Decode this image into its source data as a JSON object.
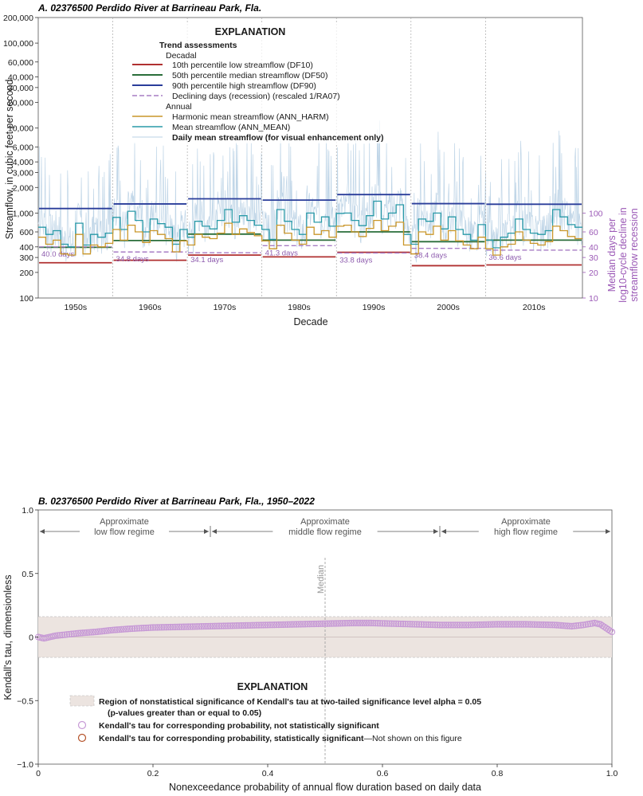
{
  "chart_data": [
    {
      "panel": "A.",
      "type": "line",
      "title": "02376500 Perdido River at Barrineau Park, Fla.",
      "xlabel": "Decade",
      "ylabel": "Streamflow, in cubic feet per second",
      "ylabel_right": [
        "Median days per",
        "log10-cycle decline in",
        "streamflow recession"
      ],
      "yscale": "log",
      "ylim": [
        100,
        200000
      ],
      "y_ticks": [
        {
          "v": 100,
          "label": "100"
        },
        {
          "v": 200,
          "label": "200"
        },
        {
          "v": 300,
          "label": "300"
        },
        {
          "v": 400,
          "label": "400"
        },
        {
          "v": 600,
          "label": "600"
        },
        {
          "v": 1000,
          "label": "1,000"
        },
        {
          "v": 2000,
          "label": "2,000"
        },
        {
          "v": 3000,
          "label": "3,000"
        },
        {
          "v": 4000,
          "label": "4,000"
        },
        {
          "v": 6000,
          "label": "6,000"
        },
        {
          "v": 10000,
          "label": "10,000"
        },
        {
          "v": 20000,
          "label": "20,000"
        },
        {
          "v": 30000,
          "label": "30,000"
        },
        {
          "v": 40000,
          "label": "40,000"
        },
        {
          "v": 60000,
          "label": "60,000"
        },
        {
          "v": 100000,
          "label": "100,000"
        },
        {
          "v": 200000,
          "label": "200,000"
        }
      ],
      "right_ticks": [
        {
          "v": 100,
          "label": "10"
        },
        {
          "v": 200,
          "label": "20"
        },
        {
          "v": 300,
          "label": "30"
        },
        {
          "v": 400,
          "label": "40"
        },
        {
          "v": 600,
          "label": "60"
        },
        {
          "v": 1000,
          "label": "100"
        }
      ],
      "xlim": [
        1950,
        2023
      ],
      "decades": [
        {
          "label": "1950s",
          "start": 1950,
          "end": 1960,
          "DF10": 260,
          "DF50": 395,
          "DF90": 1130,
          "recession_days": "40.0 days",
          "recession_value": 400
        },
        {
          "label": "1960s",
          "start": 1960,
          "end": 1970,
          "DF10": 278,
          "DF50": 475,
          "DF90": 1280,
          "recession_days": "34.8 days",
          "recession_value": 348
        },
        {
          "label": "1970s",
          "start": 1970,
          "end": 1980,
          "DF10": 320,
          "DF50": 565,
          "DF90": 1470,
          "recession_days": "34.1 days",
          "recession_value": 341
        },
        {
          "label": "1980s",
          "start": 1980,
          "end": 1990,
          "DF10": 305,
          "DF50": 480,
          "DF90": 1420,
          "recession_days": "41.3 days",
          "recession_value": 413
        },
        {
          "label": "1990s",
          "start": 1990,
          "end": 2000,
          "DF10": 345,
          "DF50": 600,
          "DF90": 1650,
          "recession_days": "33.8 days",
          "recession_value": 338
        },
        {
          "label": "2000s",
          "start": 2000,
          "end": 2010,
          "DF10": 240,
          "DF50": 460,
          "DF90": 1290,
          "recession_days": "38.4 days",
          "recession_value": 384
        },
        {
          "label": "2010s",
          "start": 2010,
          "end": 2023,
          "DF10": 245,
          "DF50": 480,
          "DF90": 1270,
          "recession_days": "36.6 days",
          "recession_value": 366
        }
      ],
      "annual_years": [
        1950,
        1951,
        1952,
        1953,
        1954,
        1955,
        1956,
        1957,
        1958,
        1959,
        1960,
        1961,
        1962,
        1963,
        1964,
        1965,
        1966,
        1967,
        1968,
        1969,
        1970,
        1971,
        1972,
        1973,
        1974,
        1975,
        1976,
        1977,
        1978,
        1979,
        1980,
        1981,
        1982,
        1983,
        1984,
        1985,
        1986,
        1987,
        1988,
        1989,
        1990,
        1991,
        1992,
        1993,
        1994,
        1995,
        1996,
        1997,
        1998,
        1999,
        2000,
        2001,
        2002,
        2003,
        2004,
        2005,
        2006,
        2007,
        2008,
        2009,
        2010,
        2011,
        2012,
        2013,
        2014,
        2015,
        2016,
        2017,
        2018,
        2019,
        2020,
        2021,
        2022
      ],
      "series": [
        {
          "name": "Mean streamflow (ANN_MEAN)",
          "color": "#2a9aa8",
          "values": [
            680,
            560,
            620,
            430,
            400,
            760,
            420,
            560,
            520,
            580,
            890,
            640,
            1050,
            820,
            600,
            850,
            750,
            680,
            430,
            640,
            520,
            800,
            700,
            650,
            820,
            1100,
            780,
            930,
            820,
            720,
            640,
            490,
            1100,
            800,
            640,
            560,
            1000,
            780,
            900,
            700,
            990,
            1000,
            820,
            710,
            930,
            1380,
            850,
            1000,
            1250,
            560,
            430,
            850,
            800,
            1000,
            650,
            900,
            640,
            560,
            480,
            730,
            480,
            390,
            520,
            580,
            850,
            640,
            580,
            560,
            620,
            1100,
            900,
            730,
            680
          ]
        },
        {
          "name": "Harmonic mean streamflow (ANN_HARM)",
          "color": "#c9962a",
          "values": [
            520,
            430,
            480,
            330,
            320,
            560,
            330,
            420,
            400,
            440,
            640,
            480,
            720,
            600,
            450,
            620,
            560,
            500,
            350,
            470,
            420,
            560,
            520,
            500,
            580,
            760,
            560,
            650,
            590,
            540,
            470,
            380,
            720,
            580,
            480,
            430,
            680,
            560,
            620,
            520,
            700,
            720,
            600,
            530,
            660,
            820,
            620,
            700,
            780,
            420,
            330,
            600,
            560,
            700,
            480,
            620,
            470,
            420,
            380,
            520,
            380,
            320,
            400,
            430,
            600,
            480,
            440,
            420,
            460,
            700,
            620,
            530,
            500
          ]
        }
      ],
      "daily_streamflow_note": "Daily mean streamflow (for visual enhancement only)",
      "legend": {
        "heading": "EXPLANATION",
        "group_title": "Trend assessments",
        "decadal_label": "Decadal",
        "annual_label": "Annual",
        "entries": [
          {
            "label": "10th percentile low streamflow (DF10)",
            "color": "#b03030",
            "style": "solid"
          },
          {
            "label": "50th percentile median streamflow (DF50)",
            "color": "#2a6e3a",
            "style": "solid"
          },
          {
            "label": "90th percentile high streamflow (DF90)",
            "color": "#2a3d9a",
            "style": "solid"
          },
          {
            "label": "Declining days (recession) (rescaled 1/RA07)",
            "color": "#a77dc4",
            "style": "dashed"
          },
          {
            "label": "Harmonic mean streamflow (ANN_HARM)",
            "color": "#c9962a",
            "style": "solid"
          },
          {
            "label": "Mean streamflow (ANN_MEAN)",
            "color": "#2a9aa8",
            "style": "solid"
          },
          {
            "label": "Daily mean streamflow (for visual enhancement only)",
            "color": "#b8d0e4",
            "style": "thin"
          }
        ]
      },
      "colors": {
        "daily": "#b8d0e4",
        "right_axis": "#9b59b6"
      }
    },
    {
      "panel": "B.",
      "type": "scatter",
      "title": "02376500 Perdido River at Barrineau Park, Fla., 1950–2022",
      "xlabel": "Nonexceedance probability of annual flow duration based on daily data",
      "ylabel": "Kendall's tau, dimensionless",
      "xlim": [
        0,
        1
      ],
      "ylim": [
        -1.0,
        1.0
      ],
      "x_ticks": [
        {
          "v": 0,
          "label": "0"
        },
        {
          "v": 0.2,
          "label": "0.2"
        },
        {
          "v": 0.4,
          "label": "0.4"
        },
        {
          "v": 0.6,
          "label": "0.6"
        },
        {
          "v": 0.8,
          "label": "0.8"
        },
        {
          "v": 1.0,
          "label": "1.0"
        }
      ],
      "y_ticks": [
        {
          "v": -1.0,
          "label": "−1.0"
        },
        {
          "v": -0.5,
          "label": "−0.5"
        },
        {
          "v": 0,
          "label": "0"
        },
        {
          "v": 0.5,
          "label": "0.5"
        },
        {
          "v": 1.0,
          "label": "1.0"
        }
      ],
      "nonsignificance_band": [
        -0.16,
        0.16
      ],
      "median_label": "Median",
      "median_x": 0.5,
      "regimes": [
        {
          "label_1": "Approximate",
          "label_2": "low flow regime",
          "from": 0,
          "to": 0.3
        },
        {
          "label_1": "Approximate",
          "label_2": "middle flow regime",
          "from": 0.3,
          "to": 0.7
        },
        {
          "label_1": "Approximate",
          "label_2": "high flow regime",
          "from": 0.7,
          "to": 1.0
        }
      ],
      "points": {
        "x": [
          0.0,
          0.01,
          0.02,
          0.03,
          0.05,
          0.07,
          0.1,
          0.13,
          0.16,
          0.2,
          0.25,
          0.3,
          0.35,
          0.4,
          0.45,
          0.5,
          0.55,
          0.58,
          0.62,
          0.66,
          0.7,
          0.75,
          0.8,
          0.85,
          0.9,
          0.93,
          0.95,
          0.97,
          0.98,
          0.99,
          1.0
        ],
        "y": [
          0.0,
          -0.01,
          0.0,
          0.01,
          0.02,
          0.03,
          0.04,
          0.055,
          0.065,
          0.075,
          0.08,
          0.085,
          0.09,
          0.095,
          0.1,
          0.105,
          0.11,
          0.11,
          0.105,
          0.1,
          0.095,
          0.095,
          0.1,
          0.1,
          0.095,
          0.085,
          0.095,
          0.11,
          0.1,
          0.07,
          0.04
        ]
      },
      "legend": {
        "heading": "EXPLANATION",
        "band_label_1": "Region of nonstatistical significance of Kendall's tau at two-tailed significance level alpha = 0.05",
        "band_label_2": "(p-values greater than or equal to 0.05)",
        "not_sig_label": "Kendall's tau for corresponding probability, not statistically significant",
        "sig_label": "Kendall's tau for corresponding probability, statistically significant",
        "sig_note": "—Not shown on this figure"
      },
      "colors": {
        "band": "#ece4e0",
        "point": "#c79ad6",
        "sig_point": "#b5532a"
      }
    }
  ]
}
